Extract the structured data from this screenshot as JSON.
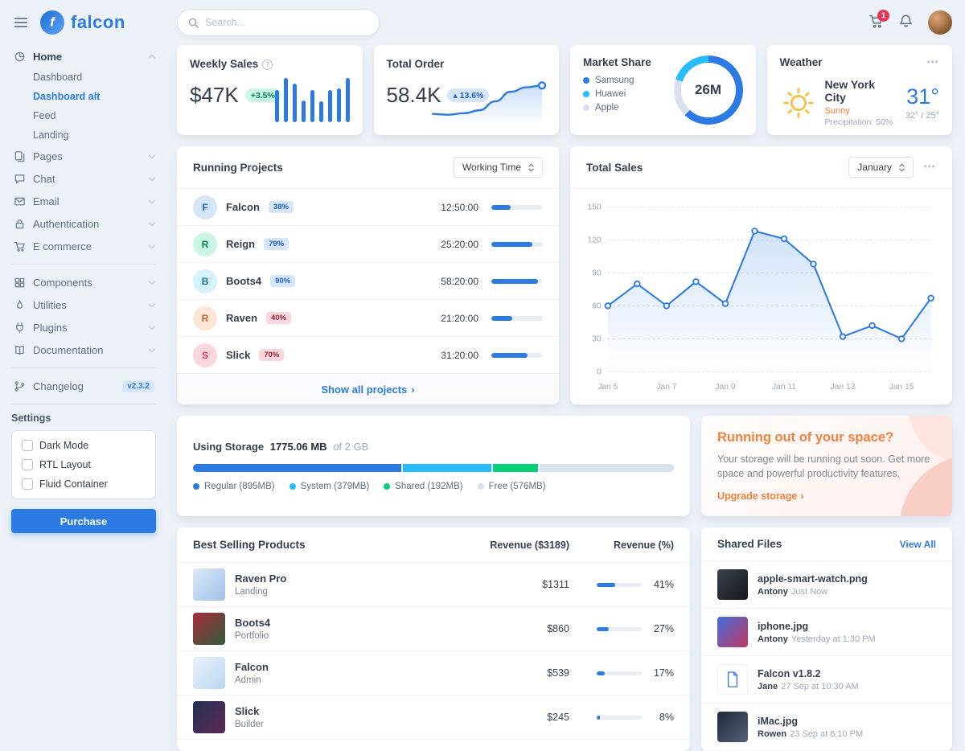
{
  "brand": {
    "name": "falcon"
  },
  "topbar": {
    "search_placeholder": "Search...",
    "cart_count": "1"
  },
  "sidebar": {
    "home": {
      "label": "Home",
      "children": [
        {
          "label": "Dashboard",
          "active": false
        },
        {
          "label": "Dashboard alt",
          "active": true
        },
        {
          "label": "Feed",
          "active": false
        },
        {
          "label": "Landing",
          "active": false
        }
      ]
    },
    "group1": [
      {
        "label": "Pages",
        "icon": "pages-icon"
      },
      {
        "label": "Chat",
        "icon": "chat-icon"
      },
      {
        "label": "Email",
        "icon": "email-icon"
      },
      {
        "label": "Authentication",
        "icon": "lock-icon"
      },
      {
        "label": "E commerce",
        "icon": "cart-icon"
      }
    ],
    "group2": [
      {
        "label": "Components",
        "icon": "components-icon"
      },
      {
        "label": "Utilities",
        "icon": "utilities-icon"
      },
      {
        "label": "Plugins",
        "icon": "plugins-icon"
      },
      {
        "label": "Documentation",
        "icon": "documentation-icon"
      }
    ],
    "changelog": {
      "label": "Changelog",
      "badge": "v2.3.2"
    },
    "settings": {
      "title": "Settings",
      "options": [
        {
          "label": "Dark Mode"
        },
        {
          "label": "RTL Layout"
        },
        {
          "label": "Fluid Container"
        }
      ],
      "purchase_label": "Purchase"
    }
  },
  "cards": {
    "weekly_sales": {
      "title": "Weekly Sales",
      "value": "$47K",
      "badge": "+3.5%",
      "bars": [
        40,
        55,
        48,
        27,
        40,
        26,
        40,
        42,
        55
      ],
      "bar_color": "#2c7be5"
    },
    "total_order": {
      "title": "Total Order",
      "value": "58.4K",
      "badge": "13.6%",
      "spark": [
        18,
        16,
        20,
        28,
        52,
        78,
        90,
        95
      ],
      "line_color": "#2c7be5"
    },
    "market_share": {
      "title": "Market Share",
      "center": "26M",
      "segments": [
        {
          "name": "Samsung",
          "value": 62,
          "color": "#2c7be5"
        },
        {
          "name": "Huawei",
          "value": 20,
          "color": "#27bcfd"
        },
        {
          "name": "Apple",
          "value": 18,
          "color": "#d8e2ef"
        }
      ],
      "donut_order": [
        0,
        2,
        1
      ]
    },
    "weather": {
      "title": "Weather",
      "city": "New York City",
      "condition": "Sunny",
      "precipitation": "Precipitation: 50%",
      "temp": "31°",
      "range": "32° / 25°"
    }
  },
  "running_projects": {
    "title": "Running Projects",
    "select": "Working Time",
    "rows": [
      {
        "initial": "F",
        "name": "Falcon",
        "badge": "38%",
        "time": "12:50:00",
        "progress": 38,
        "avatar_bg": "#d5e5fa",
        "avatar_color": "#1c61c9",
        "badge_bg": "#d5e5fa",
        "badge_color": "#1c61c9"
      },
      {
        "initial": "R",
        "name": "Reign",
        "badge": "79%",
        "time": "25:20:00",
        "progress": 79,
        "avatar_bg": "#ccf6e4",
        "avatar_color": "#00864e",
        "badge_bg": "#d5e5fa",
        "badge_color": "#1c61c9"
      },
      {
        "initial": "B",
        "name": "Boots4",
        "badge": "90%",
        "time": "58:20:00",
        "progress": 90,
        "avatar_bg": "#d4f2ff",
        "avatar_color": "#1978a2",
        "badge_bg": "#d5e5fa",
        "badge_color": "#1c61c9"
      },
      {
        "initial": "R",
        "name": "Raven",
        "badge": "40%",
        "time": "21:20:00",
        "progress": 40,
        "avatar_bg": "#fde6d8",
        "avatar_color": "#c46632",
        "badge_bg": "#fad7dd",
        "badge_color": "#932338"
      },
      {
        "initial": "S",
        "name": "Slick",
        "badge": "70%",
        "time": "31:20:00",
        "progress": 70,
        "avatar_bg": "#fad7dd",
        "avatar_color": "#e63757",
        "badge_bg": "#fad7dd",
        "badge_color": "#932338"
      }
    ],
    "footer_link": "Show all projects"
  },
  "total_sales": {
    "title": "Total Sales",
    "select": "January",
    "chart": {
      "type": "line",
      "values": [
        60,
        80,
        60,
        82,
        62,
        128,
        121,
        98,
        32,
        42,
        30,
        67
      ],
      "x_labels": [
        "Jan 5",
        "Jan 7",
        "Jan 9",
        "Jan 11",
        "Jan 13",
        "Jan 15"
      ],
      "y_ticks": [
        0,
        30,
        60,
        90,
        120,
        150
      ],
      "ymax": 150,
      "line_color": "#2c7be5"
    }
  },
  "storage": {
    "prefix": "Using Storage",
    "used": "1775.06 MB",
    "suffix": "of 2 GB",
    "segments": [
      {
        "name": "Regular (895MB)",
        "value": 43.8,
        "color": "#2c7be5"
      },
      {
        "name": "System (379MB)",
        "value": 18.6,
        "color": "#27bcfd"
      },
      {
        "name": "Shared (192MB)",
        "value": 9.4,
        "color": "#00d27a"
      },
      {
        "name": "Free (576MB)",
        "value": 28.2,
        "color": "#d8e2ef"
      }
    ]
  },
  "space_promo": {
    "title": "Running out of your space?",
    "body": "Your storage will be running out soon. Get more space and powerful productivity features.",
    "link": "Upgrade storage"
  },
  "best_selling": {
    "title": "Best Selling Products",
    "col_revenue": "Revenue ($3189)",
    "col_percent": "Revenue (%)",
    "rows": [
      {
        "name": "Raven Pro",
        "category": "Landing",
        "revenue": "$1311",
        "percent": 41,
        "percent_label": "41%",
        "thumb": [
          "#dce9f8",
          "#9fc0e8"
        ]
      },
      {
        "name": "Boots4",
        "category": "Portfolio",
        "revenue": "$860",
        "percent": 27,
        "percent_label": "27%",
        "thumb": [
          "#a92b3d",
          "#2f5d3a"
        ]
      },
      {
        "name": "Falcon",
        "category": "Admin",
        "revenue": "$539",
        "percent": 17,
        "percent_label": "17%",
        "thumb": [
          "#eaf2fb",
          "#bcd6f1"
        ]
      },
      {
        "name": "Slick",
        "category": "Builder",
        "revenue": "$245",
        "percent": 8,
        "percent_label": "8%",
        "thumb": [
          "#253056",
          "#5b2a52"
        ]
      }
    ]
  },
  "shared_files": {
    "title": "Shared Files",
    "view_all": "View All",
    "rows": [
      {
        "name": "apple-smart-watch.png",
        "author": "Antony",
        "time": "Just Now",
        "kind": "image",
        "thumb": [
          "#3b4049",
          "#15171c"
        ]
      },
      {
        "name": "iphone.jpg",
        "author": "Antony",
        "time": "Yesterday at 1:30 PM",
        "kind": "image",
        "thumb": [
          "#3f6fd8",
          "#c33764"
        ]
      },
      {
        "name": "Falcon v1.8.2",
        "author": "Jane",
        "time": "27 Sep at 10:30 AM",
        "kind": "file",
        "thumb": []
      },
      {
        "name": "iMac.jpg",
        "author": "Rowen",
        "time": "23 Sep at 6:10 PM",
        "kind": "image",
        "thumb": [
          "#20283a",
          "#55617a"
        ]
      }
    ]
  }
}
